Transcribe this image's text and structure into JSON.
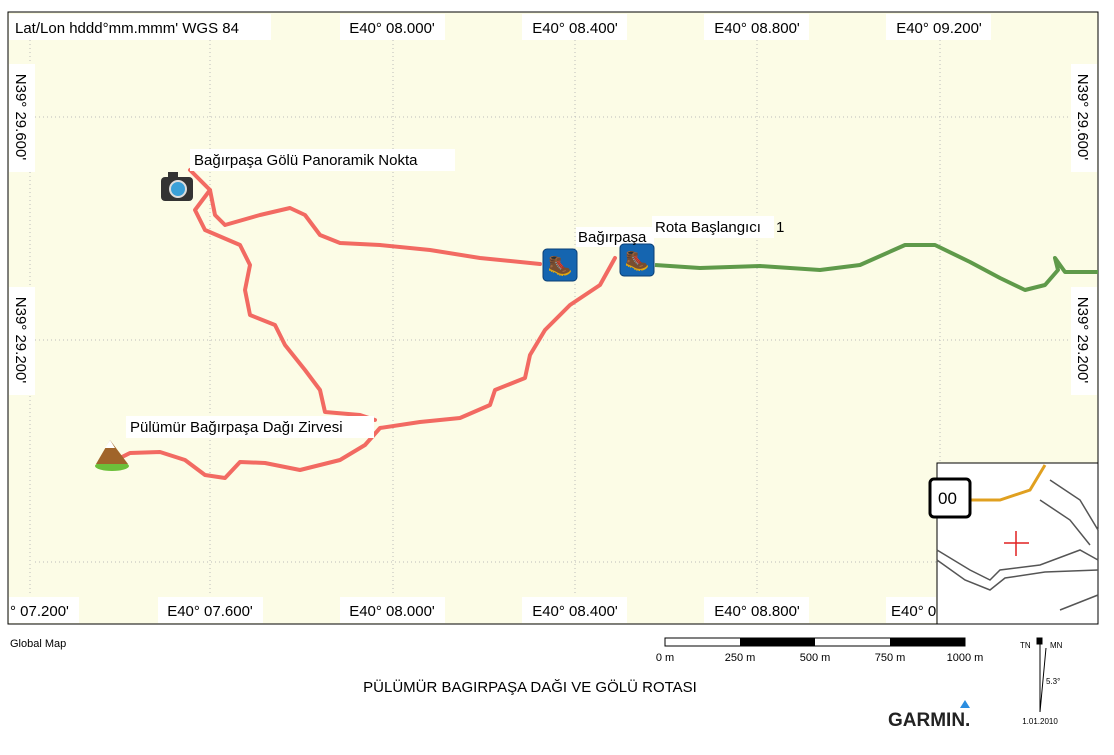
{
  "header": {
    "datum": "Lat/Lon hddd°mm.mmm' WGS 84"
  },
  "top_labels": [
    "E40° 08.000'",
    "E40° 08.400'",
    "E40° 08.800'",
    "E40° 09.200'"
  ],
  "bottom_labels": [
    "° 07.200'",
    "E40° 07.600'",
    "E40° 08.000'",
    "E40° 08.400'",
    "E40° 08.800'",
    "E40° 0"
  ],
  "left_labels": [
    "N39° 29.600'",
    "N39° 29.200'"
  ],
  "right_labels": [
    "N39° 29.600'",
    "N39° 29.200'"
  ],
  "waypoints": [
    "Bağırpaşa Gölü Panoramik Nokta",
    "Bağırpaşa",
    "Rota Başlangıcı",
    "1",
    "Pülümür Bağırpaşa Dağı Zirvesi"
  ],
  "inset": {
    "label": "00"
  },
  "footer": {
    "source": "Global Map",
    "title": "PÜLÜMÜR BAGIRPAŞA DAĞI VE GÖLÜ ROTASI",
    "brand": "GARMIN.",
    "date": "1.01.2010"
  },
  "scale": [
    "0 m",
    "250 m",
    "500 m",
    "750 m",
    "1000 m"
  ],
  "north": {
    "tn": "TN",
    "mn": "MN",
    "declination": "5.3°"
  }
}
